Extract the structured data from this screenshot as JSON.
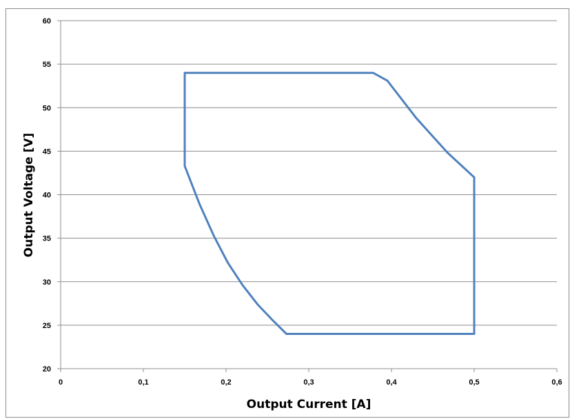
{
  "chart_data": {
    "type": "line",
    "title": "",
    "xlabel": "Output Current [A]",
    "ylabel": "Output Voltage [V]",
    "xlim": [
      0,
      0.6
    ],
    "ylim": [
      20,
      60
    ],
    "x_ticks": [
      "0",
      "0,1",
      "0,2",
      "0,3",
      "0,4",
      "0,5",
      "0,6"
    ],
    "y_ticks": [
      "20",
      "25",
      "30",
      "35",
      "40",
      "45",
      "50",
      "55",
      "60"
    ],
    "grid": "horizontal",
    "legend": "none",
    "series": [
      {
        "color": "#4f81bd",
        "points": [
          [
            0.15,
            54.0
          ],
          [
            0.378,
            54.0
          ],
          [
            0.395,
            53.1
          ],
          [
            0.43,
            48.8
          ],
          [
            0.468,
            44.8
          ],
          [
            0.5,
            42.0
          ],
          [
            0.5,
            24.0
          ],
          [
            0.273,
            24.0
          ],
          [
            0.256,
            25.6
          ],
          [
            0.238,
            27.4
          ],
          [
            0.22,
            29.6
          ],
          [
            0.202,
            32.2
          ],
          [
            0.185,
            35.3
          ],
          [
            0.168,
            38.9
          ],
          [
            0.15,
            43.3
          ],
          [
            0.15,
            54.0
          ]
        ]
      }
    ]
  }
}
